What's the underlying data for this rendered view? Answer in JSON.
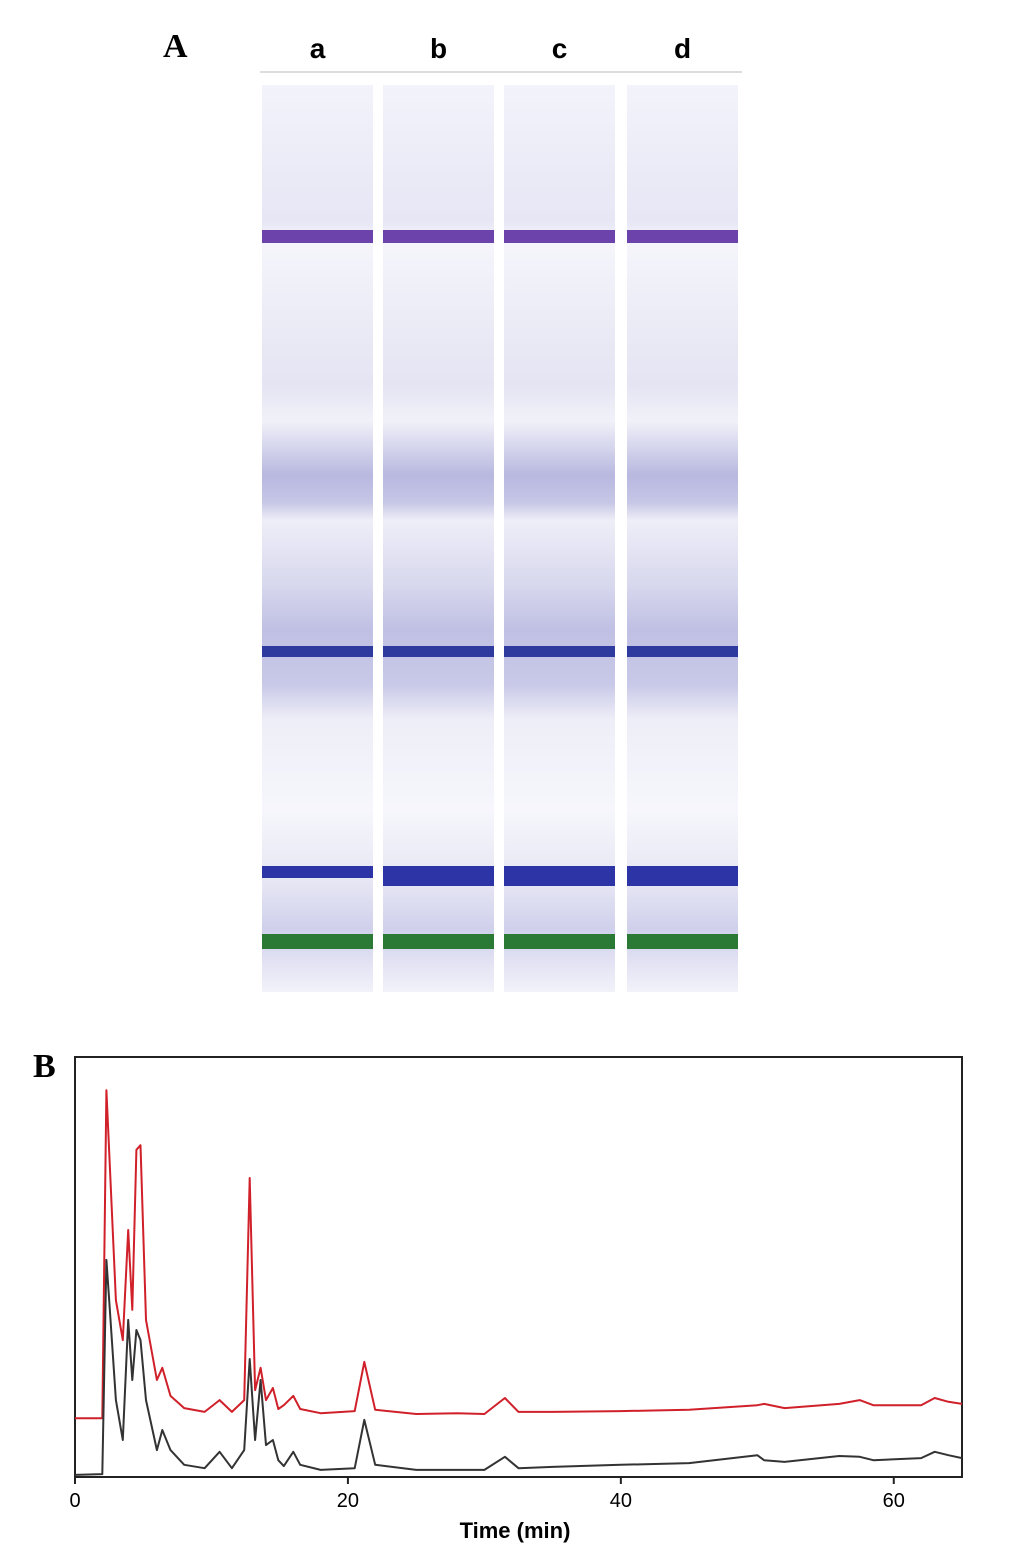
{
  "panel_a": {
    "label": "A",
    "lanes": [
      "a",
      "b",
      "c",
      "d"
    ]
  },
  "chart_data": {
    "type": "line",
    "panel_label": "B",
    "x_label": "Time (min)",
    "x": [
      0,
      2.0,
      2.3,
      2.5,
      3.0,
      3.5,
      3.9,
      4.2,
      4.5,
      4.8,
      5.2,
      6.0,
      6.4,
      7.0,
      8.0,
      9.5,
      10.6,
      11.5,
      12.4,
      12.8,
      13.2,
      13.6,
      14.0,
      14.5,
      14.9,
      15.3,
      16.0,
      16.5,
      18,
      20.5,
      21.2,
      22,
      25,
      28,
      30,
      31.5,
      32.5,
      35,
      40,
      45,
      50,
      50.5,
      52,
      56,
      57.5,
      58.5,
      62,
      63,
      64,
      65
    ],
    "series": [
      {
        "color": "#d0202a",
        "values": [
          14,
          14,
          92.1,
          77.9,
          42.1,
          32.6,
          58.8,
          39.8,
          77.9,
          79,
          37.4,
          23.1,
          26,
          19.3,
          16.4,
          15.5,
          18.3,
          15.5,
          18.3,
          71.2,
          20.7,
          26,
          18.3,
          21.2,
          16.2,
          17.1,
          19.3,
          16.2,
          15.2,
          15.7,
          27.4,
          16,
          15,
          15.2,
          15,
          18.8,
          15.5,
          15.5,
          15.7,
          16,
          17.1,
          17.4,
          16.4,
          17.4,
          18.3,
          17.1,
          17.1,
          18.8,
          17.9,
          17.4
        ]
      },
      {
        "color": "#333333",
        "values": [
          0.5,
          0.7,
          51.7,
          42.4,
          18.3,
          8.8,
          37.4,
          23.1,
          35,
          32.6,
          18.3,
          6.4,
          11.2,
          6.4,
          2.9,
          2.1,
          6,
          2.1,
          6.4,
          28.1,
          8.8,
          23.1,
          7.6,
          8.8,
          4,
          2.6,
          6,
          2.9,
          1.7,
          2.1,
          13.6,
          2.9,
          1.7,
          1.7,
          1.7,
          4.8,
          2.1,
          2.4,
          2.9,
          3.3,
          5.2,
          4,
          3.6,
          5,
          4.8,
          4,
          4.5,
          6,
          5.2,
          4.5
        ]
      }
    ],
    "xlim": [
      0,
      65
    ],
    "xticks": [
      0,
      20,
      40,
      60
    ],
    "ylim": [
      0,
      100
    ]
  }
}
